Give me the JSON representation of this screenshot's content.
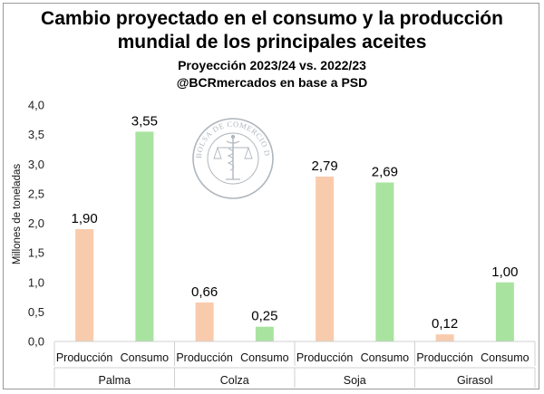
{
  "title_line1": "Cambio proyectado en el consumo y la producción",
  "title_line2": "mundial de los principales aceites",
  "subtitle": "Proyección 2023/24 vs. 2022/23",
  "source": "@BCRmercados en base a PSD",
  "watermark_text": "BOLSA DE COMERCIO DE ROSARIO",
  "chart_data": {
    "type": "bar",
    "ylabel": "Millones de toneladas",
    "ylim": [
      0,
      4.0
    ],
    "yticks": [
      "0,0",
      "0,5",
      "1,0",
      "1,5",
      "2,0",
      "2,5",
      "3,0",
      "3,5",
      "4,0"
    ],
    "groups": [
      {
        "name": "Palma",
        "bars": [
          {
            "label": "Producción",
            "value": 1.9,
            "value_label": "1,90",
            "color": "#f8cbad"
          },
          {
            "label": "Consumo",
            "value": 3.55,
            "value_label": "3,55",
            "color": "#a9e3a0"
          }
        ]
      },
      {
        "name": "Colza",
        "bars": [
          {
            "label": "Producción",
            "value": 0.66,
            "value_label": "0,66",
            "color": "#f8cbad"
          },
          {
            "label": "Consumo",
            "value": 0.25,
            "value_label": "0,25",
            "color": "#a9e3a0"
          }
        ]
      },
      {
        "name": "Soja",
        "bars": [
          {
            "label": "Producción",
            "value": 2.79,
            "value_label": "2,79",
            "color": "#f8cbad"
          },
          {
            "label": "Consumo",
            "value": 2.69,
            "value_label": "2,69",
            "color": "#a9e3a0"
          }
        ]
      },
      {
        "name": "Girasol",
        "bars": [
          {
            "label": "Producción",
            "value": 0.12,
            "value_label": "0,12",
            "color": "#f8cbad"
          },
          {
            "label": "Consumo",
            "value": 1.0,
            "value_label": "1,00",
            "color": "#a9e3a0"
          }
        ]
      }
    ],
    "grid": false,
    "legend": "none"
  }
}
